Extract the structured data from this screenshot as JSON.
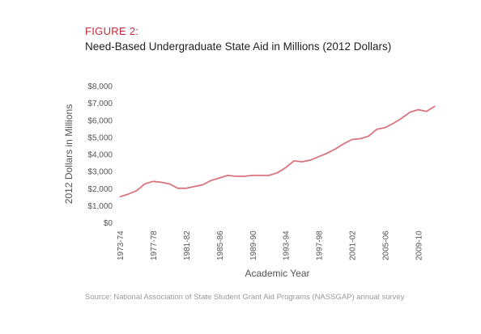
{
  "figure_label": "FIGURE 2:",
  "source": "Source: National Association of State Student Grant Aid Programs (NASSGAP) annual survey",
  "colors": {
    "accent": "#c8293a",
    "line": "#d9737d",
    "axis_text": "#555555"
  },
  "chart_data": {
    "type": "line",
    "title": "Need-Based Undergraduate State Aid in Millions (2012 Dollars)",
    "xlabel": "Academic Year",
    "ylabel": "2012 Dollars in Millions",
    "ylim": [
      0,
      8000
    ],
    "yticks": [
      "$0",
      "$1,000",
      "$2,000",
      "$3,000",
      "$4,000",
      "$5,000",
      "$6,000",
      "$7,000",
      "$8,000"
    ],
    "xtick_labels": [
      "1973-74",
      "1977-78",
      "1981-82",
      "1985-86",
      "1989-90",
      "1993-94",
      "1997-98",
      "2001-02",
      "2005-06",
      "2009-10"
    ],
    "grid": false,
    "series": [
      {
        "x": [
          "1973-74",
          "1974-75",
          "1975-76",
          "1976-77",
          "1977-78",
          "1978-79",
          "1979-80",
          "1980-81",
          "1981-82",
          "1982-83",
          "1983-84",
          "1984-85",
          "1985-86",
          "1986-87",
          "1987-88",
          "1988-89",
          "1989-90",
          "1990-91",
          "1991-92",
          "1992-93",
          "1993-94",
          "1994-95",
          "1995-96",
          "1996-97",
          "1997-98",
          "1998-99",
          "1999-00",
          "2000-01",
          "2001-02",
          "2002-03",
          "2003-04",
          "2004-05",
          "2005-06",
          "2006-07",
          "2007-08",
          "2008-09",
          "2009-10",
          "2010-11",
          "2011-12"
        ],
        "values": [
          1500,
          1650,
          1850,
          2250,
          2400,
          2350,
          2250,
          2000,
          2000,
          2100,
          2200,
          2450,
          2600,
          2750,
          2700,
          2700,
          2750,
          2750,
          2750,
          2900,
          3200,
          3600,
          3550,
          3650,
          3850,
          4050,
          4300,
          4600,
          4850,
          4900,
          5050,
          5450,
          5550,
          5800,
          6100,
          6450,
          6600,
          6500,
          6800
        ]
      }
    ]
  }
}
